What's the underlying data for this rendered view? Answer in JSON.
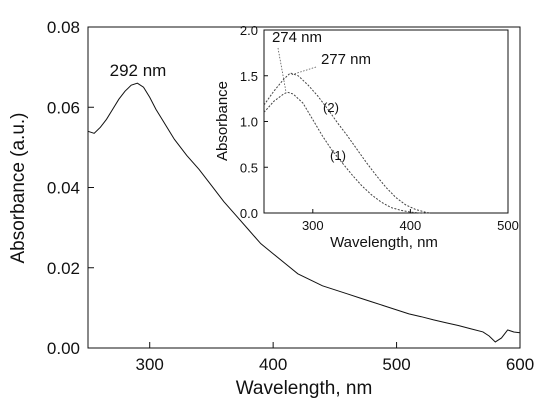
{
  "chart_data": [
    {
      "type": "line",
      "xlabel": "Wavelength, nm",
      "ylabel": "Absorbance (a.u.)",
      "xlim": [
        250,
        600
      ],
      "ylim": [
        0,
        0.08
      ],
      "xticks": [
        300,
        400,
        500,
        600
      ],
      "yticks": [
        "0.00",
        "0.02",
        "0.04",
        "0.06",
        "0.08"
      ],
      "annotations": [
        {
          "text": "292 nm",
          "x": 292,
          "y": 0.0665
        }
      ],
      "series": [
        {
          "x": [
            250,
            255,
            260,
            265,
            270,
            275,
            280,
            285,
            290,
            295,
            300,
            305,
            310,
            320,
            330,
            340,
            350,
            360,
            370,
            380,
            390,
            400,
            410,
            420,
            430,
            440,
            450,
            460,
            470,
            480,
            490,
            500,
            510,
            520,
            530,
            540,
            550,
            560,
            570,
            575,
            580,
            585,
            590,
            595,
            600
          ],
          "y": [
            0.054,
            0.0535,
            0.055,
            0.057,
            0.0595,
            0.062,
            0.064,
            0.0655,
            0.066,
            0.065,
            0.0625,
            0.0595,
            0.057,
            0.052,
            0.048,
            0.0445,
            0.0405,
            0.0365,
            0.033,
            0.0295,
            0.026,
            0.0235,
            0.021,
            0.0185,
            0.017,
            0.0155,
            0.0145,
            0.0135,
            0.0125,
            0.0115,
            0.0105,
            0.0095,
            0.0085,
            0.0078,
            0.007,
            0.0063,
            0.0056,
            0.0048,
            0.004,
            0.003,
            0.0015,
            0.0025,
            0.0045,
            0.004,
            0.0038
          ]
        }
      ]
    },
    {
      "type": "line",
      "xlabel": "Wavelength, nm",
      "ylabel": "Absorbance",
      "xlim": [
        250,
        500
      ],
      "ylim": [
        0,
        2.0
      ],
      "xticks": [
        300,
        400,
        500
      ],
      "yticks": [
        "0.0",
        "0.5",
        "1.0",
        "1.5",
        "2.0"
      ],
      "annotations": [
        {
          "text": "274 nm",
          "x": 274,
          "y": 1.32
        },
        {
          "text": "277 nm",
          "x": 277,
          "y": 1.53
        }
      ],
      "series": [
        {
          "name": "(1)",
          "x": [
            250,
            260,
            270,
            274,
            280,
            290,
            300,
            310,
            320,
            330,
            340,
            350,
            360,
            370,
            380,
            390,
            400,
            410,
            420
          ],
          "y": [
            1.1,
            1.22,
            1.3,
            1.32,
            1.3,
            1.2,
            1.02,
            0.84,
            0.68,
            0.55,
            0.42,
            0.3,
            0.2,
            0.12,
            0.06,
            0.03,
            0.01,
            0.0,
            0.0
          ]
        },
        {
          "name": "(2)",
          "x": [
            250,
            260,
            270,
            277,
            285,
            295,
            305,
            315,
            325,
            335,
            345,
            355,
            365,
            375,
            385,
            395,
            405,
            415,
            420
          ],
          "y": [
            1.18,
            1.33,
            1.46,
            1.53,
            1.5,
            1.4,
            1.28,
            1.14,
            0.99,
            0.85,
            0.7,
            0.55,
            0.41,
            0.28,
            0.17,
            0.09,
            0.04,
            0.01,
            0.0
          ]
        }
      ]
    }
  ]
}
